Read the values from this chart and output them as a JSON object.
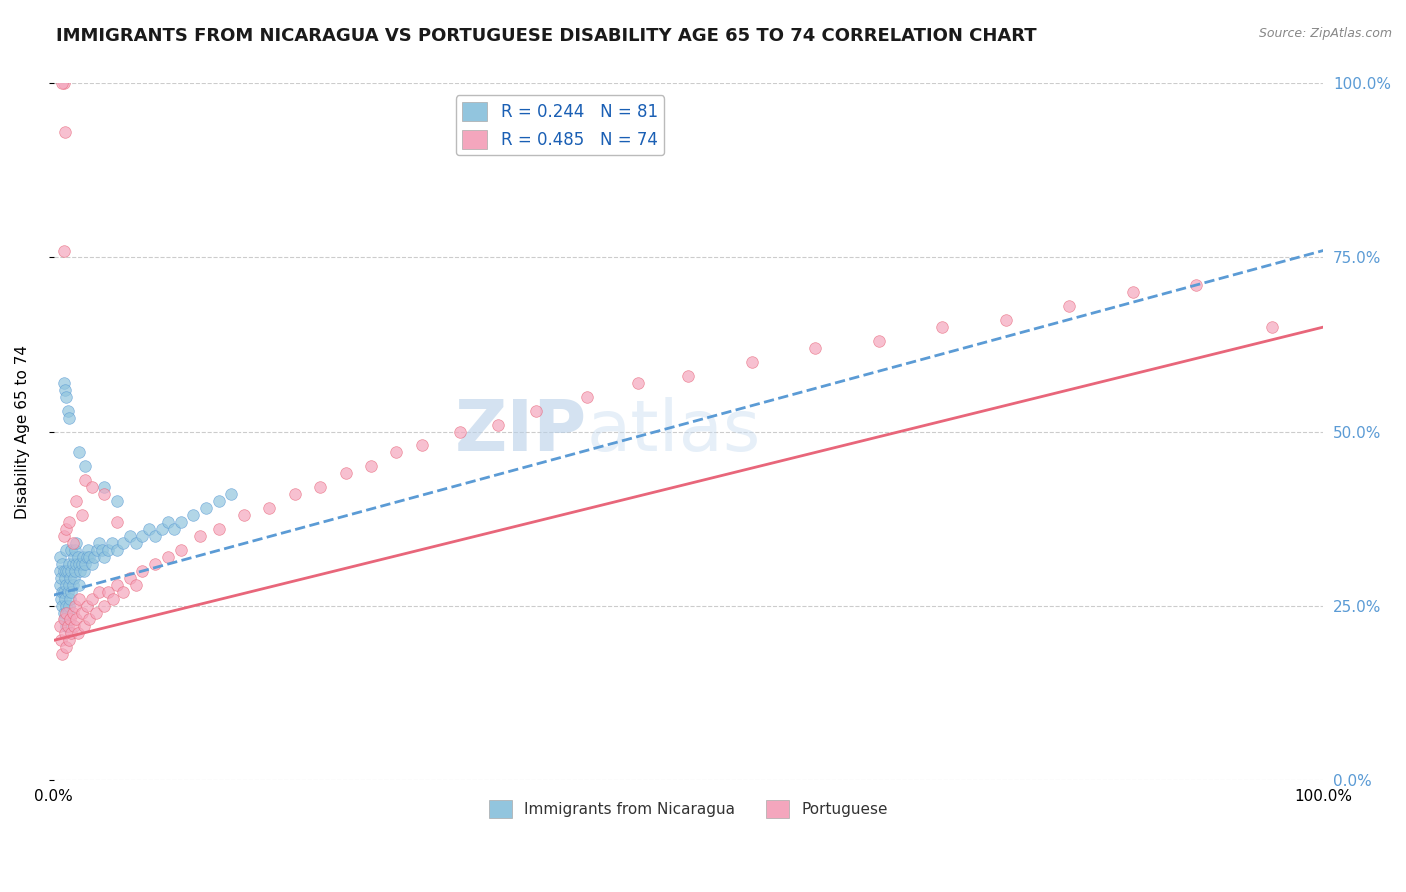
{
  "title": "IMMIGRANTS FROM NICARAGUA VS PORTUGUESE DISABILITY AGE 65 TO 74 CORRELATION CHART",
  "source_text": "Source: ZipAtlas.com",
  "ylabel": "Disability Age 65 to 74",
  "xlim": [
    0.0,
    1.0
  ],
  "ylim": [
    0.0,
    1.0
  ],
  "ytick_positions": [
    0.0,
    0.25,
    0.5,
    0.75,
    1.0
  ],
  "ytick_labels": [
    "0.0%",
    "25.0%",
    "50.0%",
    "75.0%",
    "100.0%"
  ],
  "legend_label1": "Immigrants from Nicaragua",
  "legend_label2": "Portuguese",
  "scatter_color1": "#92C5DE",
  "scatter_color2": "#F4A6BD",
  "line_color1": "#5B9BD5",
  "line_color2": "#E8667A",
  "trendline1_x": [
    0.0,
    1.0
  ],
  "trendline1_y": [
    0.265,
    0.76
  ],
  "trendline2_x": [
    0.0,
    1.0
  ],
  "trendline2_y": [
    0.2,
    0.65
  ],
  "background_color": "#FFFFFF",
  "grid_color": "#CCCCCC",
  "title_fontsize": 13,
  "axis_fontsize": 11,
  "tick_fontsize": 11,
  "scatter1_x": [
    0.005,
    0.005,
    0.005,
    0.006,
    0.006,
    0.007,
    0.007,
    0.007,
    0.008,
    0.008,
    0.008,
    0.009,
    0.009,
    0.009,
    0.01,
    0.01,
    0.01,
    0.01,
    0.01,
    0.011,
    0.011,
    0.011,
    0.012,
    0.012,
    0.012,
    0.013,
    0.013,
    0.014,
    0.014,
    0.014,
    0.015,
    0.015,
    0.016,
    0.016,
    0.017,
    0.017,
    0.018,
    0.018,
    0.019,
    0.02,
    0.02,
    0.021,
    0.022,
    0.023,
    0.024,
    0.025,
    0.026,
    0.027,
    0.028,
    0.03,
    0.032,
    0.034,
    0.036,
    0.038,
    0.04,
    0.043,
    0.046,
    0.05,
    0.055,
    0.06,
    0.065,
    0.07,
    0.075,
    0.08,
    0.085,
    0.09,
    0.095,
    0.1,
    0.11,
    0.12,
    0.13,
    0.14,
    0.008,
    0.009,
    0.01,
    0.011,
    0.012,
    0.02,
    0.025,
    0.04,
    0.05
  ],
  "scatter1_y": [
    0.28,
    0.3,
    0.32,
    0.26,
    0.29,
    0.25,
    0.27,
    0.31,
    0.24,
    0.27,
    0.3,
    0.23,
    0.26,
    0.29,
    0.22,
    0.25,
    0.28,
    0.3,
    0.33,
    0.24,
    0.27,
    0.3,
    0.25,
    0.28,
    0.31,
    0.26,
    0.29,
    0.27,
    0.3,
    0.33,
    0.28,
    0.31,
    0.29,
    0.32,
    0.3,
    0.33,
    0.31,
    0.34,
    0.32,
    0.28,
    0.31,
    0.3,
    0.31,
    0.32,
    0.3,
    0.31,
    0.32,
    0.33,
    0.32,
    0.31,
    0.32,
    0.33,
    0.34,
    0.33,
    0.32,
    0.33,
    0.34,
    0.33,
    0.34,
    0.35,
    0.34,
    0.35,
    0.36,
    0.35,
    0.36,
    0.37,
    0.36,
    0.37,
    0.38,
    0.39,
    0.4,
    0.41,
    0.57,
    0.56,
    0.55,
    0.53,
    0.52,
    0.47,
    0.45,
    0.42,
    0.4
  ],
  "scatter2_x": [
    0.005,
    0.006,
    0.007,
    0.008,
    0.009,
    0.01,
    0.01,
    0.011,
    0.012,
    0.013,
    0.014,
    0.015,
    0.016,
    0.017,
    0.018,
    0.019,
    0.02,
    0.022,
    0.024,
    0.026,
    0.028,
    0.03,
    0.033,
    0.036,
    0.04,
    0.043,
    0.047,
    0.05,
    0.055,
    0.06,
    0.065,
    0.07,
    0.08,
    0.09,
    0.1,
    0.115,
    0.13,
    0.15,
    0.17,
    0.19,
    0.21,
    0.23,
    0.25,
    0.27,
    0.29,
    0.32,
    0.35,
    0.38,
    0.42,
    0.46,
    0.5,
    0.55,
    0.6,
    0.65,
    0.7,
    0.75,
    0.8,
    0.85,
    0.9,
    0.96,
    0.008,
    0.01,
    0.012,
    0.015,
    0.008,
    0.025,
    0.018,
    0.022,
    0.03,
    0.04,
    0.05,
    0.008,
    0.007,
    0.009
  ],
  "scatter2_y": [
    0.22,
    0.2,
    0.18,
    0.23,
    0.21,
    0.19,
    0.24,
    0.22,
    0.2,
    0.23,
    0.21,
    0.24,
    0.22,
    0.25,
    0.23,
    0.21,
    0.26,
    0.24,
    0.22,
    0.25,
    0.23,
    0.26,
    0.24,
    0.27,
    0.25,
    0.27,
    0.26,
    0.28,
    0.27,
    0.29,
    0.28,
    0.3,
    0.31,
    0.32,
    0.33,
    0.35,
    0.36,
    0.38,
    0.39,
    0.41,
    0.42,
    0.44,
    0.45,
    0.47,
    0.48,
    0.5,
    0.51,
    0.53,
    0.55,
    0.57,
    0.58,
    0.6,
    0.62,
    0.63,
    0.65,
    0.66,
    0.68,
    0.7,
    0.71,
    0.65,
    0.35,
    0.36,
    0.37,
    0.34,
    0.76,
    0.43,
    0.4,
    0.38,
    0.42,
    0.41,
    0.37,
    1.0,
    1.0,
    0.93
  ]
}
